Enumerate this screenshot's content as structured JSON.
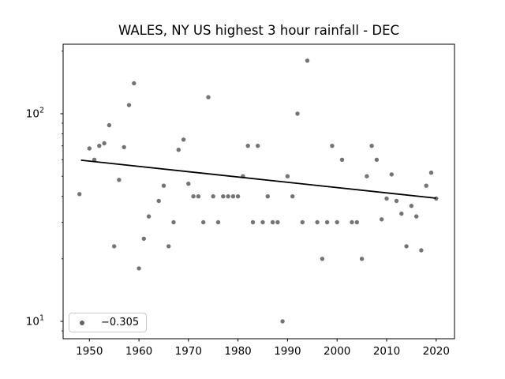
{
  "title": "WALES, NY US highest 3 hour rainfall - DEC",
  "colors": {
    "dot": "#616161",
    "trend": "#000000",
    "axis": "#000000",
    "tick_label": "#000000",
    "background": "#ffffff",
    "legend_border": "#c9c9c9"
  },
  "legend": {
    "label": "−0.305",
    "marker": "gray-scatter-dot",
    "position": "lower left"
  },
  "chart_data": {
    "type": "scatter",
    "title": "WALES, NY US highest 3 hour rainfall - DEC",
    "xlabel": "",
    "ylabel": "",
    "x_ticks": [
      1950,
      1960,
      1970,
      1980,
      1990,
      2000,
      2010,
      2020
    ],
    "y_scale": "log",
    "y_ticks": [
      {
        "base": "10",
        "exp": "2",
        "value": 100
      },
      {
        "base": "10",
        "exp": "1",
        "value": 10
      }
    ],
    "y_minor_ticks": [
      9,
      20,
      30,
      40,
      50,
      60,
      70,
      80,
      90,
      200
    ],
    "xlim": [
      1944.7,
      2023.7
    ],
    "ylim": [
      8.25,
      216
    ],
    "grid": false,
    "legend_label": "−0.305",
    "points": [
      [
        1948,
        41
      ],
      [
        1950,
        68
      ],
      [
        1951,
        60
      ],
      [
        1952,
        70
      ],
      [
        1953,
        72
      ],
      [
        1954,
        88
      ],
      [
        1955,
        23
      ],
      [
        1956,
        48
      ],
      [
        1957,
        69
      ],
      [
        1958,
        110
      ],
      [
        1959,
        140
      ],
      [
        1960,
        18
      ],
      [
        1961,
        25
      ],
      [
        1962,
        32
      ],
      [
        1964,
        38
      ],
      [
        1965,
        45
      ],
      [
        1966,
        23
      ],
      [
        1967,
        30
      ],
      [
        1968,
        67
      ],
      [
        1969,
        75
      ],
      [
        1970,
        46
      ],
      [
        1971,
        40
      ],
      [
        1972,
        40
      ],
      [
        1973,
        30
      ],
      [
        1974,
        120
      ],
      [
        1975,
        40
      ],
      [
        1976,
        30
      ],
      [
        1977,
        40
      ],
      [
        1978,
        40
      ],
      [
        1979,
        40
      ],
      [
        1980,
        40
      ],
      [
        1981,
        50
      ],
      [
        1982,
        70
      ],
      [
        1983,
        30
      ],
      [
        1984,
        70
      ],
      [
        1985,
        30
      ],
      [
        1986,
        40
      ],
      [
        1987,
        30
      ],
      [
        1988,
        30
      ],
      [
        1989,
        10
      ],
      [
        1990,
        50
      ],
      [
        1991,
        40
      ],
      [
        1992,
        100
      ],
      [
        1993,
        30
      ],
      [
        1994,
        180
      ],
      [
        1996,
        30
      ],
      [
        1997,
        20
      ],
      [
        1998,
        30
      ],
      [
        1999,
        70
      ],
      [
        2000,
        30
      ],
      [
        2001,
        60
      ],
      [
        2003,
        30
      ],
      [
        2004,
        30
      ],
      [
        2005,
        20
      ],
      [
        2006,
        50
      ],
      [
        2007,
        70
      ],
      [
        2008,
        60
      ],
      [
        2009,
        31
      ],
      [
        2010,
        39
      ],
      [
        2011,
        51
      ],
      [
        2012,
        38
      ],
      [
        2013,
        33
      ],
      [
        2014,
        23
      ],
      [
        2015,
        36
      ],
      [
        2016,
        32
      ],
      [
        2017,
        22
      ],
      [
        2018,
        45
      ],
      [
        2019,
        52
      ],
      [
        2020,
        39
      ]
    ],
    "trend": {
      "x": [
        1948.3,
        2020.0
      ],
      "y": [
        59.7,
        39.2
      ],
      "slope_label": "−0.305"
    }
  }
}
